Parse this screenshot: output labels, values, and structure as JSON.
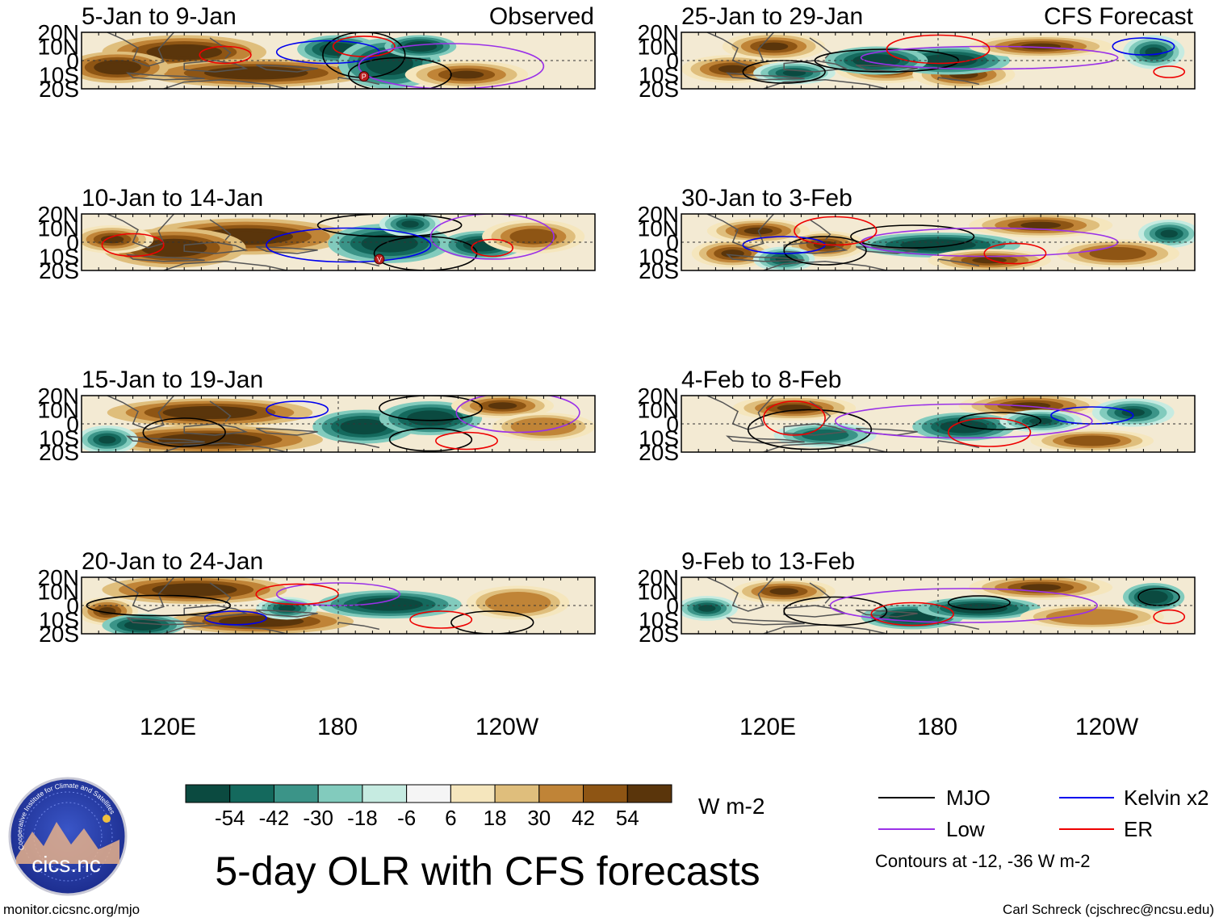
{
  "title": "5-day OLR with CFS forecasts",
  "left_column_label": "Observed",
  "right_column_label": "CFS Forecast",
  "panels": [
    {
      "title": "5-Jan to 9-Jan",
      "column": "observed",
      "markers": [
        "P"
      ]
    },
    {
      "title": "10-Jan to 14-Jan",
      "column": "observed",
      "markers": [
        "V"
      ]
    },
    {
      "title": "15-Jan to 19-Jan",
      "column": "observed",
      "markers": []
    },
    {
      "title": "20-Jan to 24-Jan",
      "column": "observed",
      "markers": []
    },
    {
      "title": "25-Jan to 29-Jan",
      "column": "forecast",
      "markers": []
    },
    {
      "title": "30-Jan to 3-Feb",
      "column": "forecast",
      "markers": []
    },
    {
      "title": "4-Feb to 8-Feb",
      "column": "forecast",
      "markers": []
    },
    {
      "title": "9-Feb to 13-Feb",
      "column": "forecast",
      "markers": []
    }
  ],
  "lat_labels": [
    "20N",
    "10N",
    "0",
    "10S",
    "20S"
  ],
  "lon_labels": [
    "120E",
    "180",
    "120W"
  ],
  "colorbar": {
    "ticks": [
      "-54",
      "-42",
      "-30",
      "-18",
      "-6",
      "6",
      "18",
      "30",
      "42",
      "54"
    ],
    "units": "W m-2",
    "colors": [
      "#0b4a40",
      "#14695d",
      "#3b9488",
      "#82cbbd",
      "#c6ebe1",
      "#f5f5f5",
      "#f5e6bd",
      "#dfbe7c",
      "#c08437",
      "#8e5514",
      "#5a350b"
    ]
  },
  "legend": {
    "items": [
      {
        "label": "MJO",
        "color": "#000000"
      },
      {
        "label": "Kelvin x2",
        "color": "#0000ee"
      },
      {
        "label": "Low",
        "color": "#9a30e8"
      },
      {
        "label": "ER",
        "color": "#ee0000"
      }
    ],
    "note": "Contours at -12, -36 W m-2"
  },
  "logo_text": "cics.nc",
  "logo_ring_text": "Cooperative Institute for Climate and Satellites",
  "footer_left": "monitor.cicsnc.org/mjo",
  "footer_right": "Carl Schreck (cjschrec@ncsu.edu)"
}
